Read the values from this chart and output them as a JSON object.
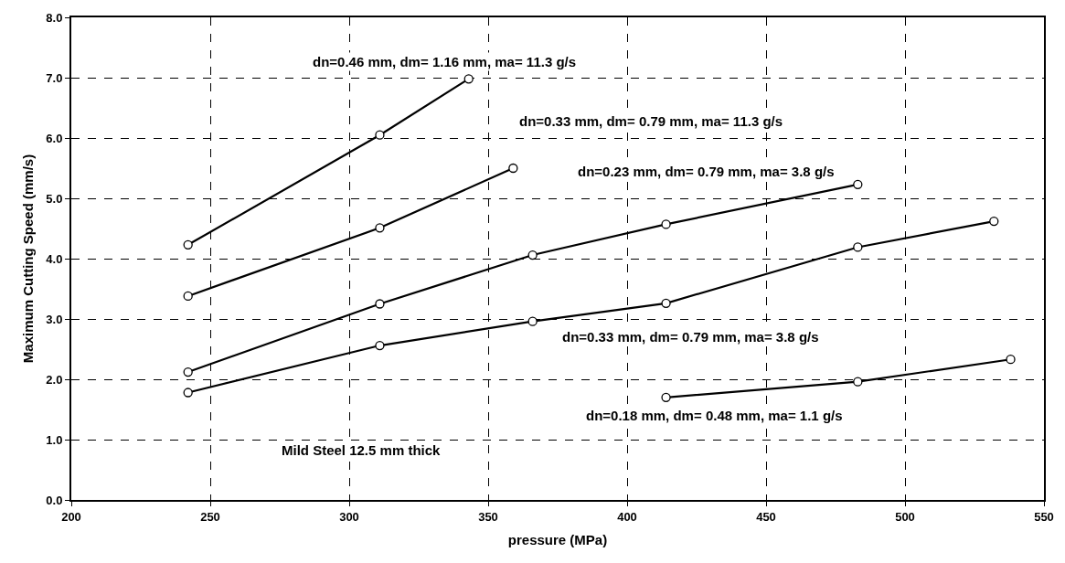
{
  "chart_data": {
    "type": "line",
    "xlabel": "pressure (MPa)",
    "ylabel": "Maximum Cutting Speed (mm/s)",
    "xlim": [
      200,
      550
    ],
    "xticks": [
      200,
      250,
      300,
      350,
      400,
      450,
      500,
      550
    ],
    "ylim": [
      0,
      8
    ],
    "yticks": [
      {
        "value": 0,
        "label": "0.0"
      },
      {
        "value": 1,
        "label": "1.0"
      },
      {
        "value": 2,
        "label": "2.0"
      },
      {
        "value": 3,
        "label": "3.0"
      },
      {
        "value": 4,
        "label": "4.0"
      },
      {
        "value": 5,
        "label": "5.0"
      },
      {
        "value": 6,
        "label": "6.0"
      },
      {
        "value": 7,
        "label": "7.0"
      },
      {
        "value": 8,
        "label": "8.0"
      }
    ],
    "grid": true,
    "legend": false,
    "marker": "circle",
    "line_style": "solid",
    "series": [
      {
        "name": "dn=0.46 mm, dm= 1.16 mm, ma= 11.3 g/s",
        "color": "#000000",
        "x": [
          242,
          311,
          343
        ],
        "values": [
          4.23,
          6.05,
          6.98
        ]
      },
      {
        "name": "dn=0.33 mm, dm= 0.79 mm, ma= 11.3 g/s",
        "color": "#000000",
        "x": [
          242,
          311,
          359
        ],
        "values": [
          3.38,
          4.51,
          5.5
        ]
      },
      {
        "name": "dn=0.23 mm, dm= 0.79 mm, ma= 3.8 g/s",
        "color": "#000000",
        "x": [
          242,
          311,
          366,
          414,
          483
        ],
        "values": [
          2.12,
          3.25,
          4.06,
          4.57,
          5.23
        ]
      },
      {
        "name": "dn=0.33 mm, dm= 0.79 mm, ma= 3.8 g/s",
        "color": "#000000",
        "x": [
          242,
          311,
          366,
          414,
          483,
          532
        ],
        "values": [
          1.78,
          2.56,
          2.96,
          3.26,
          4.19,
          4.62
        ]
      },
      {
        "name": "dn=0.18 mm, dm= 0.48 mm, ma= 1.1 g/s",
        "color": "#000000",
        "x": [
          414,
          483,
          538
        ],
        "values": [
          1.7,
          1.96,
          2.33
        ]
      }
    ],
    "annotations": [
      "Mild Steel 12.5 mm thick"
    ]
  }
}
